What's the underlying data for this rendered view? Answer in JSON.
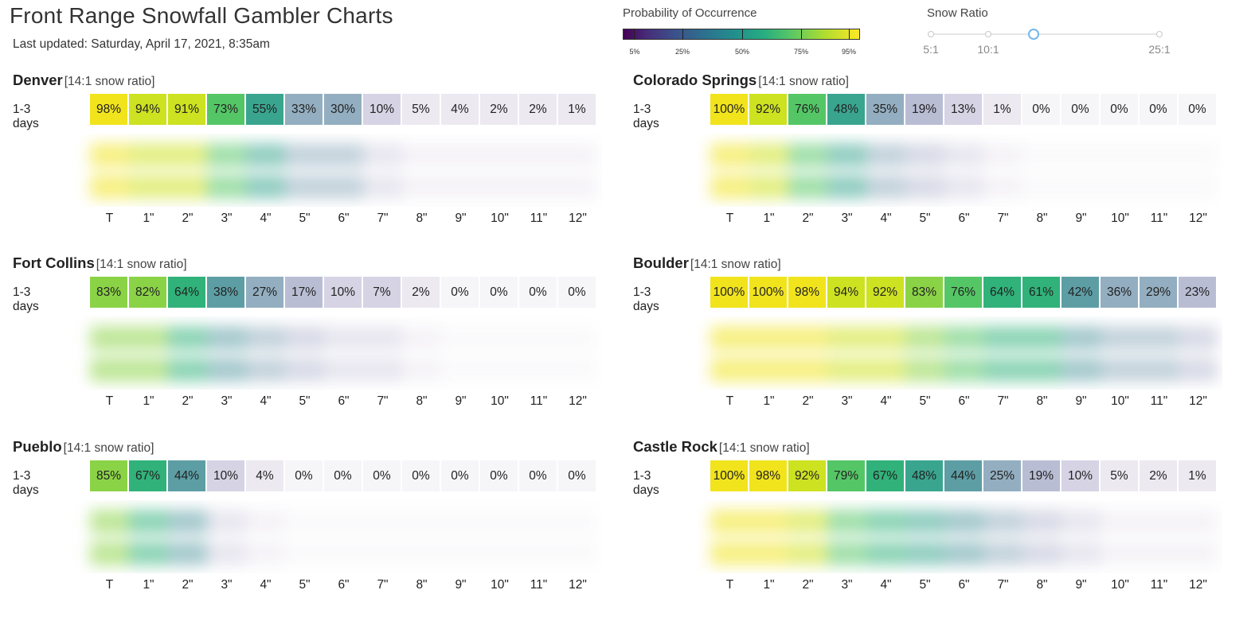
{
  "page": {
    "title": "Front Range Snowfall Gambler Charts",
    "updated": "Last updated: Saturday, April 17, 2021, 8:35am"
  },
  "legend": {
    "title": "Probability of Occurrence",
    "ticks": [
      "5%",
      "25%",
      "50%",
      "75%",
      "95%"
    ]
  },
  "snow_ratio": {
    "title": "Snow Ratio",
    "labels": [
      "5:1",
      "10:1",
      "25:1"
    ],
    "selected": "14:1"
  },
  "axis_labels": [
    "T",
    "1\"",
    "2\"",
    "3\"",
    "4\"",
    "5\"",
    "6\"",
    "7\"",
    "8\"",
    "9\"",
    "10\"",
    "11\"",
    "12\""
  ],
  "panels": [
    {
      "name": "Denver",
      "ratio": "[14:1 snow ratio]",
      "row_label": "1-3 days",
      "values": [
        "98%",
        "94%",
        "91%",
        "73%",
        "55%",
        "33%",
        "30%",
        "10%",
        "5%",
        "4%",
        "2%",
        "2%",
        "1%"
      ]
    },
    {
      "name": "Colorado Springs",
      "ratio": "[14:1 snow ratio]",
      "row_label": "1-3 days",
      "values": [
        "100%",
        "92%",
        "76%",
        "48%",
        "35%",
        "19%",
        "13%",
        "1%",
        "0%",
        "0%",
        "0%",
        "0%",
        "0%"
      ]
    },
    {
      "name": "Fort Collins",
      "ratio": "[14:1 snow ratio]",
      "row_label": "1-3 days",
      "values": [
        "83%",
        "82%",
        "64%",
        "38%",
        "27%",
        "17%",
        "10%",
        "7%",
        "2%",
        "0%",
        "0%",
        "0%",
        "0%"
      ]
    },
    {
      "name": "Boulder",
      "ratio": "[14:1 snow ratio]",
      "row_label": "1-3 days",
      "values": [
        "100%",
        "100%",
        "98%",
        "94%",
        "92%",
        "83%",
        "76%",
        "64%",
        "61%",
        "42%",
        "36%",
        "29%",
        "23%"
      ]
    },
    {
      "name": "Pueblo",
      "ratio": "[14:1 snow ratio]",
      "row_label": "1-3 days",
      "values": [
        "85%",
        "67%",
        "44%",
        "10%",
        "4%",
        "0%",
        "0%",
        "0%",
        "0%",
        "0%",
        "0%",
        "0%",
        "0%"
      ]
    },
    {
      "name": "Castle Rock",
      "ratio": "[14:1 snow ratio]",
      "row_label": "1-3 days",
      "values": [
        "100%",
        "98%",
        "92%",
        "79%",
        "67%",
        "48%",
        "44%",
        "25%",
        "19%",
        "10%",
        "5%",
        "2%",
        "1%"
      ]
    }
  ],
  "colors": {
    "p95_100": "#f1e41d",
    "p90": "#cde221",
    "p80": "#8bd346",
    "p70": "#55c666",
    "p60": "#31b27a",
    "p50": "#3aa58f",
    "p40": "#5d9ea5",
    "p30": "#93aec0",
    "p20": "#b9bdd4",
    "p10": "#d6d3e4",
    "p5": "#ece9f1",
    "p0": "#f6f5f8"
  }
}
